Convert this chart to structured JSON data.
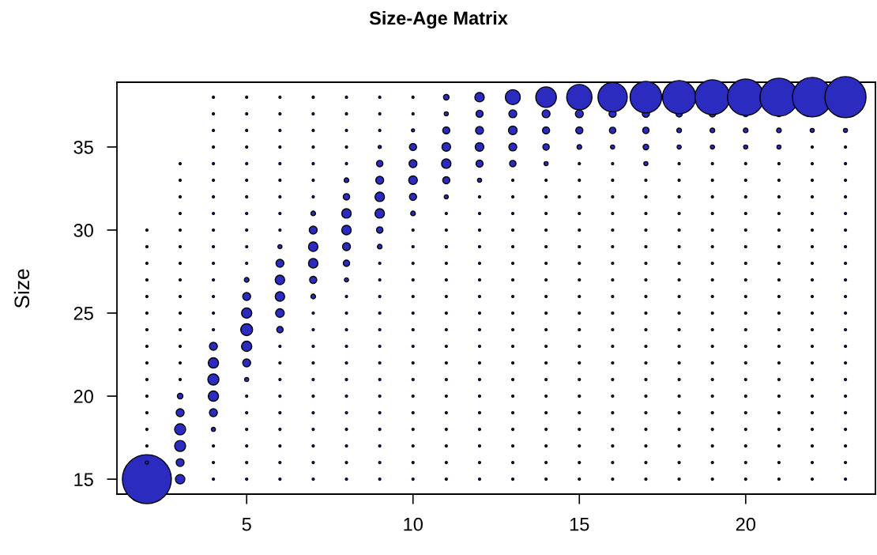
{
  "chart_data": {
    "type": "bubble",
    "title": "Size-Age Matrix",
    "ylabel": "Size",
    "xlim": [
      1.1,
      23.9
    ],
    "ylim": [
      14.1,
      38.9
    ],
    "xticks": [
      5,
      10,
      15,
      20
    ],
    "yticks": [
      15,
      20,
      25,
      30,
      35
    ],
    "grid": false,
    "legend": false,
    "series": [
      {
        "color": "#2b2bc0",
        "x": [
          2,
          2,
          2,
          2,
          2,
          2,
          2,
          2,
          2,
          2,
          2,
          2,
          2,
          2,
          2,
          2
        ],
        "values": [
          15,
          16,
          17,
          18,
          19,
          20,
          21,
          22,
          23,
          24,
          25,
          26,
          27,
          28,
          29,
          30
        ],
        "sizes": [
          1,
          0.004,
          0.002,
          0.002,
          0.002,
          0.002,
          0.002,
          0.002,
          0.002,
          0.002,
          0.002,
          0.002,
          0.002,
          0.002,
          0.002,
          0.002
        ]
      },
      {
        "color": "#2b2bc0",
        "x": [
          3,
          3,
          3,
          3,
          3,
          3,
          3,
          3,
          3,
          3,
          3,
          3,
          3,
          3,
          3,
          3,
          3,
          3,
          3,
          3
        ],
        "values": [
          15,
          16,
          17,
          18,
          19,
          20,
          21,
          22,
          23,
          24,
          25,
          26,
          27,
          28,
          29,
          30,
          31,
          32,
          33,
          34
        ],
        "sizes": [
          0.037,
          0.026,
          0.051,
          0.051,
          0.026,
          0.013,
          0.002,
          0.002,
          0.002,
          0.002,
          0.002,
          0.002,
          0.002,
          0.002,
          0.002,
          0.002,
          0.002,
          0.002,
          0.002,
          0.002
        ]
      },
      {
        "color": "#2b2bc0",
        "x": [
          4,
          4,
          4,
          4,
          4,
          4,
          4,
          4,
          4,
          4,
          4,
          4,
          4,
          4,
          4,
          4,
          4,
          4,
          4,
          4,
          4,
          4,
          4,
          4
        ],
        "values": [
          15,
          16,
          17,
          18,
          19,
          20,
          21,
          22,
          23,
          24,
          25,
          26,
          27,
          28,
          29,
          30,
          31,
          32,
          33,
          34,
          35,
          36,
          37,
          38
        ],
        "sizes": [
          0.002,
          0.002,
          0.002,
          0.007,
          0.026,
          0.044,
          0.051,
          0.044,
          0.026,
          0.002,
          0.002,
          0.002,
          0.002,
          0.002,
          0.002,
          0.002,
          0.002,
          0.002,
          0.002,
          0.002,
          0.002,
          0.002,
          0.002,
          0.002
        ]
      },
      {
        "color": "#2b2bc0",
        "x": [
          5,
          5,
          5,
          5,
          5,
          5,
          5,
          5,
          5,
          5,
          5,
          5,
          5,
          5,
          5,
          5,
          5,
          5,
          5,
          5,
          5,
          5,
          5,
          5
        ],
        "values": [
          15,
          16,
          17,
          18,
          19,
          20,
          21,
          22,
          23,
          24,
          25,
          26,
          27,
          28,
          29,
          30,
          31,
          32,
          33,
          34,
          35,
          36,
          37,
          38
        ],
        "sizes": [
          0.002,
          0.002,
          0.002,
          0.002,
          0.002,
          0.002,
          0.007,
          0.026,
          0.044,
          0.059,
          0.044,
          0.026,
          0.009,
          0.002,
          0.002,
          0.002,
          0.002,
          0.002,
          0.002,
          0.002,
          0.002,
          0.002,
          0.002,
          0.002
        ]
      },
      {
        "color": "#2b2bc0",
        "x": [
          6,
          6,
          6,
          6,
          6,
          6,
          6,
          6,
          6,
          6,
          6,
          6,
          6,
          6,
          6,
          6,
          6,
          6,
          6,
          6,
          6,
          6,
          6,
          6
        ],
        "values": [
          15,
          16,
          17,
          18,
          19,
          20,
          21,
          22,
          23,
          24,
          25,
          26,
          27,
          28,
          29,
          30,
          31,
          32,
          33,
          34,
          35,
          36,
          37,
          38
        ],
        "sizes": [
          0.002,
          0.002,
          0.002,
          0.002,
          0.002,
          0.002,
          0.002,
          0.002,
          0.002,
          0.017,
          0.031,
          0.037,
          0.037,
          0.026,
          0.007,
          0.002,
          0.002,
          0.002,
          0.002,
          0.002,
          0.002,
          0.002,
          0.002,
          0.002
        ]
      },
      {
        "color": "#2b2bc0",
        "x": [
          7,
          7,
          7,
          7,
          7,
          7,
          7,
          7,
          7,
          7,
          7,
          7,
          7,
          7,
          7,
          7,
          7,
          7,
          7,
          7,
          7,
          7,
          7,
          7
        ],
        "values": [
          15,
          16,
          17,
          18,
          19,
          20,
          21,
          22,
          23,
          24,
          25,
          26,
          27,
          28,
          29,
          30,
          31,
          32,
          33,
          34,
          35,
          36,
          37,
          38
        ],
        "sizes": [
          0.002,
          0.002,
          0.002,
          0.002,
          0.002,
          0.002,
          0.002,
          0.002,
          0.002,
          0.002,
          0.002,
          0.009,
          0.021,
          0.037,
          0.037,
          0.026,
          0.009,
          0.002,
          0.002,
          0.002,
          0.002,
          0.002,
          0.002,
          0.002
        ]
      },
      {
        "color": "#2b2bc0",
        "x": [
          8,
          8,
          8,
          8,
          8,
          8,
          8,
          8,
          8,
          8,
          8,
          8,
          8,
          8,
          8,
          8,
          8,
          8,
          8,
          8,
          8,
          8,
          8,
          8
        ],
        "values": [
          15,
          16,
          17,
          18,
          19,
          20,
          21,
          22,
          23,
          24,
          25,
          26,
          27,
          28,
          29,
          30,
          31,
          32,
          33,
          34,
          35,
          36,
          37,
          38
        ],
        "sizes": [
          0.002,
          0.002,
          0.002,
          0.002,
          0.002,
          0.002,
          0.002,
          0.002,
          0.002,
          0.002,
          0.002,
          0.002,
          0.007,
          0.017,
          0.026,
          0.037,
          0.037,
          0.017,
          0.009,
          0.002,
          0.002,
          0.002,
          0.002,
          0.002
        ]
      },
      {
        "color": "#2b2bc0",
        "x": [
          9,
          9,
          9,
          9,
          9,
          9,
          9,
          9,
          9,
          9,
          9,
          9,
          9,
          9,
          9,
          9,
          9,
          9,
          9,
          9,
          9,
          9,
          9,
          9
        ],
        "values": [
          15,
          16,
          17,
          18,
          19,
          20,
          21,
          22,
          23,
          24,
          25,
          26,
          27,
          28,
          29,
          30,
          31,
          32,
          33,
          34,
          35,
          36,
          37,
          38
        ],
        "sizes": [
          0.002,
          0.002,
          0.002,
          0.002,
          0.002,
          0.002,
          0.002,
          0.002,
          0.002,
          0.002,
          0.002,
          0.002,
          0.002,
          0.002,
          0.009,
          0.017,
          0.037,
          0.037,
          0.026,
          0.017,
          0.004,
          0.002,
          0.002,
          0.002
        ]
      },
      {
        "color": "#2b2bc0",
        "x": [
          10,
          10,
          10,
          10,
          10,
          10,
          10,
          10,
          10,
          10,
          10,
          10,
          10,
          10,
          10,
          10,
          10,
          10,
          10,
          10,
          10,
          10,
          10,
          10
        ],
        "values": [
          15,
          16,
          17,
          18,
          19,
          20,
          21,
          22,
          23,
          24,
          25,
          26,
          27,
          28,
          29,
          30,
          31,
          32,
          33,
          34,
          35,
          36,
          37,
          38
        ],
        "sizes": [
          0.002,
          0.002,
          0.002,
          0.002,
          0.002,
          0.002,
          0.002,
          0.002,
          0.002,
          0.002,
          0.002,
          0.002,
          0.002,
          0.002,
          0.002,
          0.002,
          0.009,
          0.021,
          0.031,
          0.026,
          0.021,
          0.004,
          0.002,
          0.002
        ]
      },
      {
        "color": "#2b2bc0",
        "x": [
          11,
          11,
          11,
          11,
          11,
          11,
          11,
          11,
          11,
          11,
          11,
          11,
          11,
          11,
          11,
          11,
          11,
          11,
          11,
          11,
          11,
          11,
          11,
          11
        ],
        "values": [
          15,
          16,
          17,
          18,
          19,
          20,
          21,
          22,
          23,
          24,
          25,
          26,
          27,
          28,
          29,
          30,
          31,
          32,
          33,
          34,
          35,
          36,
          37,
          38
        ],
        "sizes": [
          0.002,
          0.002,
          0.002,
          0.002,
          0.002,
          0.002,
          0.002,
          0.002,
          0.002,
          0.002,
          0.002,
          0.002,
          0.002,
          0.002,
          0.002,
          0.002,
          0.002,
          0.007,
          0.021,
          0.037,
          0.031,
          0.021,
          0.007,
          0.013
        ]
      },
      {
        "color": "#2b2bc0",
        "x": [
          12,
          12,
          12,
          12,
          12,
          12,
          12,
          12,
          12,
          12,
          12,
          12,
          12,
          12,
          12,
          12,
          12,
          12,
          12,
          12,
          12,
          12,
          12,
          12
        ],
        "values": [
          15,
          16,
          17,
          18,
          19,
          20,
          21,
          22,
          23,
          24,
          25,
          26,
          27,
          28,
          29,
          30,
          31,
          32,
          33,
          34,
          35,
          36,
          37,
          38
        ],
        "sizes": [
          0.002,
          0.002,
          0.002,
          0.002,
          0.002,
          0.002,
          0.002,
          0.002,
          0.002,
          0.002,
          0.002,
          0.002,
          0.002,
          0.002,
          0.002,
          0.002,
          0.002,
          0.002,
          0.007,
          0.021,
          0.031,
          0.026,
          0.021,
          0.037
        ]
      },
      {
        "color": "#2b2bc0",
        "x": [
          13,
          13,
          13,
          13,
          13,
          13,
          13,
          13,
          13,
          13,
          13,
          13,
          13,
          13,
          13,
          13,
          13,
          13,
          13,
          13,
          13,
          13,
          13,
          13
        ],
        "values": [
          15,
          16,
          17,
          18,
          19,
          20,
          21,
          22,
          23,
          24,
          25,
          26,
          27,
          28,
          29,
          30,
          31,
          32,
          33,
          34,
          35,
          36,
          37,
          38
        ],
        "sizes": [
          0.002,
          0.002,
          0.002,
          0.002,
          0.002,
          0.002,
          0.002,
          0.002,
          0.002,
          0.002,
          0.002,
          0.002,
          0.002,
          0.002,
          0.002,
          0.002,
          0.002,
          0.002,
          0.002,
          0.017,
          0.026,
          0.031,
          0.026,
          0.094
        ]
      },
      {
        "color": "#2b2bc0",
        "x": [
          14,
          14,
          14,
          14,
          14,
          14,
          14,
          14,
          14,
          14,
          14,
          14,
          14,
          14,
          14,
          14,
          14,
          14,
          14,
          14,
          14,
          14,
          14,
          14
        ],
        "values": [
          15,
          16,
          17,
          18,
          19,
          20,
          21,
          22,
          23,
          24,
          25,
          26,
          27,
          28,
          29,
          30,
          31,
          32,
          33,
          34,
          35,
          36,
          37,
          38
        ],
        "sizes": [
          0.002,
          0.002,
          0.002,
          0.002,
          0.002,
          0.002,
          0.002,
          0.002,
          0.002,
          0.002,
          0.002,
          0.002,
          0.002,
          0.002,
          0.002,
          0.002,
          0.002,
          0.002,
          0.002,
          0.007,
          0.017,
          0.021,
          0.026,
          0.176
        ]
      },
      {
        "color": "#2b2bc0",
        "x": [
          15,
          15,
          15,
          15,
          15,
          15,
          15,
          15,
          15,
          15,
          15,
          15,
          15,
          15,
          15,
          15,
          15,
          15,
          15,
          15,
          15,
          15,
          15,
          15
        ],
        "values": [
          15,
          16,
          17,
          18,
          19,
          20,
          21,
          22,
          23,
          24,
          25,
          26,
          27,
          28,
          29,
          30,
          31,
          32,
          33,
          34,
          35,
          36,
          37,
          38
        ],
        "sizes": [
          0.002,
          0.002,
          0.002,
          0.002,
          0.002,
          0.002,
          0.002,
          0.002,
          0.002,
          0.002,
          0.002,
          0.002,
          0.002,
          0.002,
          0.002,
          0.002,
          0.002,
          0.002,
          0.002,
          0.002,
          0.009,
          0.021,
          0.026,
          0.266
        ]
      },
      {
        "color": "#2b2bc0",
        "x": [
          16,
          16,
          16,
          16,
          16,
          16,
          16,
          16,
          16,
          16,
          16,
          16,
          16,
          16,
          16,
          16,
          16,
          16,
          16,
          16,
          16,
          16,
          16,
          16
        ],
        "values": [
          15,
          16,
          17,
          18,
          19,
          20,
          21,
          22,
          23,
          24,
          25,
          26,
          27,
          28,
          29,
          30,
          31,
          32,
          33,
          34,
          35,
          36,
          37,
          38
        ],
        "sizes": [
          0.002,
          0.002,
          0.002,
          0.002,
          0.002,
          0.002,
          0.002,
          0.002,
          0.002,
          0.002,
          0.002,
          0.002,
          0.002,
          0.002,
          0.002,
          0.002,
          0.002,
          0.002,
          0.002,
          0.002,
          0.007,
          0.017,
          0.021,
          0.356
        ]
      },
      {
        "color": "#2b2bc0",
        "x": [
          17,
          17,
          17,
          17,
          17,
          17,
          17,
          17,
          17,
          17,
          17,
          17,
          17,
          17,
          17,
          17,
          17,
          17,
          17,
          17,
          17,
          17,
          17,
          17
        ],
        "values": [
          15,
          16,
          17,
          18,
          19,
          20,
          21,
          22,
          23,
          24,
          25,
          26,
          27,
          28,
          29,
          30,
          31,
          32,
          33,
          34,
          35,
          36,
          37,
          38
        ],
        "sizes": [
          0.002,
          0.002,
          0.002,
          0.002,
          0.002,
          0.002,
          0.002,
          0.002,
          0.002,
          0.002,
          0.002,
          0.002,
          0.002,
          0.002,
          0.002,
          0.002,
          0.002,
          0.002,
          0.002,
          0.007,
          0.013,
          0.017,
          0.021,
          0.416
        ]
      },
      {
        "color": "#2b2bc0",
        "x": [
          18,
          18,
          18,
          18,
          18,
          18,
          18,
          18,
          18,
          18,
          18,
          18,
          18,
          18,
          18,
          18,
          18,
          18,
          18,
          18,
          18,
          18,
          18,
          18
        ],
        "values": [
          15,
          16,
          17,
          18,
          19,
          20,
          21,
          22,
          23,
          24,
          25,
          26,
          27,
          28,
          29,
          30,
          31,
          32,
          33,
          34,
          35,
          36,
          37,
          38
        ],
        "sizes": [
          0.002,
          0.002,
          0.002,
          0.002,
          0.002,
          0.002,
          0.002,
          0.002,
          0.002,
          0.002,
          0.002,
          0.002,
          0.002,
          0.002,
          0.002,
          0.002,
          0.002,
          0.002,
          0.002,
          0.002,
          0.007,
          0.009,
          0.017,
          0.459
        ]
      },
      {
        "color": "#2b2bc0",
        "x": [
          19,
          19,
          19,
          19,
          19,
          19,
          19,
          19,
          19,
          19,
          19,
          19,
          19,
          19,
          19,
          19,
          19,
          19,
          19,
          19,
          19,
          19,
          19,
          19
        ],
        "values": [
          15,
          16,
          17,
          18,
          19,
          20,
          21,
          22,
          23,
          24,
          25,
          26,
          27,
          28,
          29,
          30,
          31,
          32,
          33,
          34,
          35,
          36,
          37,
          38
        ],
        "sizes": [
          0.002,
          0.002,
          0.002,
          0.002,
          0.002,
          0.002,
          0.002,
          0.002,
          0.002,
          0.002,
          0.002,
          0.002,
          0.002,
          0.002,
          0.002,
          0.002,
          0.002,
          0.002,
          0.002,
          0.002,
          0.007,
          0.009,
          0.017,
          0.504
        ]
      },
      {
        "color": "#2b2bc0",
        "x": [
          20,
          20,
          20,
          20,
          20,
          20,
          20,
          20,
          20,
          20,
          20,
          20,
          20,
          20,
          20,
          20,
          20,
          20,
          20,
          20,
          20,
          20,
          20,
          20
        ],
        "values": [
          15,
          16,
          17,
          18,
          19,
          20,
          21,
          22,
          23,
          24,
          25,
          26,
          27,
          28,
          29,
          30,
          31,
          32,
          33,
          34,
          35,
          36,
          37,
          38
        ],
        "sizes": [
          0.002,
          0.002,
          0.002,
          0.002,
          0.002,
          0.002,
          0.002,
          0.002,
          0.002,
          0.002,
          0.002,
          0.002,
          0.002,
          0.002,
          0.002,
          0.002,
          0.002,
          0.002,
          0.002,
          0.002,
          0.007,
          0.009,
          0.013,
          0.55
        ]
      },
      {
        "color": "#2b2bc0",
        "x": [
          21,
          21,
          21,
          21,
          21,
          21,
          21,
          21,
          21,
          21,
          21,
          21,
          21,
          21,
          21,
          21,
          21,
          21,
          21,
          21,
          21,
          21,
          21,
          21
        ],
        "values": [
          15,
          16,
          17,
          18,
          19,
          20,
          21,
          22,
          23,
          24,
          25,
          26,
          27,
          28,
          29,
          30,
          31,
          32,
          33,
          34,
          35,
          36,
          37,
          38
        ],
        "sizes": [
          0.002,
          0.002,
          0.002,
          0.002,
          0.002,
          0.002,
          0.002,
          0.002,
          0.002,
          0.002,
          0.002,
          0.002,
          0.002,
          0.002,
          0.002,
          0.002,
          0.002,
          0.002,
          0.002,
          0.002,
          0.007,
          0.009,
          0.013,
          0.599
        ]
      },
      {
        "color": "#2b2bc0",
        "x": [
          22,
          22,
          22,
          22,
          22,
          22,
          22,
          22,
          22,
          22,
          22,
          22,
          22,
          22,
          22,
          22,
          22,
          22,
          22,
          22,
          22,
          22,
          22
        ],
        "values": [
          15,
          16,
          17,
          18,
          19,
          20,
          21,
          22,
          23,
          24,
          25,
          26,
          27,
          28,
          29,
          30,
          31,
          32,
          33,
          34,
          35,
          36,
          38
        ],
        "sizes": [
          0.002,
          0.002,
          0.002,
          0.002,
          0.002,
          0.002,
          0.002,
          0.002,
          0.002,
          0.002,
          0.002,
          0.002,
          0.002,
          0.002,
          0.002,
          0.002,
          0.002,
          0.002,
          0.002,
          0.002,
          0.002,
          0.007,
          0.65
        ]
      },
      {
        "color": "#2b2bc0",
        "x": [
          23,
          23,
          23,
          23,
          23,
          23,
          23,
          23,
          23,
          23,
          23,
          23,
          23,
          23,
          23,
          23,
          23,
          23,
          23,
          23,
          23,
          23,
          23
        ],
        "values": [
          15,
          16,
          17,
          18,
          19,
          20,
          21,
          22,
          23,
          24,
          25,
          26,
          27,
          28,
          29,
          30,
          31,
          32,
          33,
          34,
          35,
          36,
          38
        ],
        "sizes": [
          0.002,
          0.002,
          0.002,
          0.002,
          0.002,
          0.002,
          0.002,
          0.002,
          0.002,
          0.002,
          0.002,
          0.002,
          0.002,
          0.002,
          0.002,
          0.002,
          0.002,
          0.002,
          0.002,
          0.002,
          0.002,
          0.007,
          0.703
        ]
      }
    ]
  }
}
